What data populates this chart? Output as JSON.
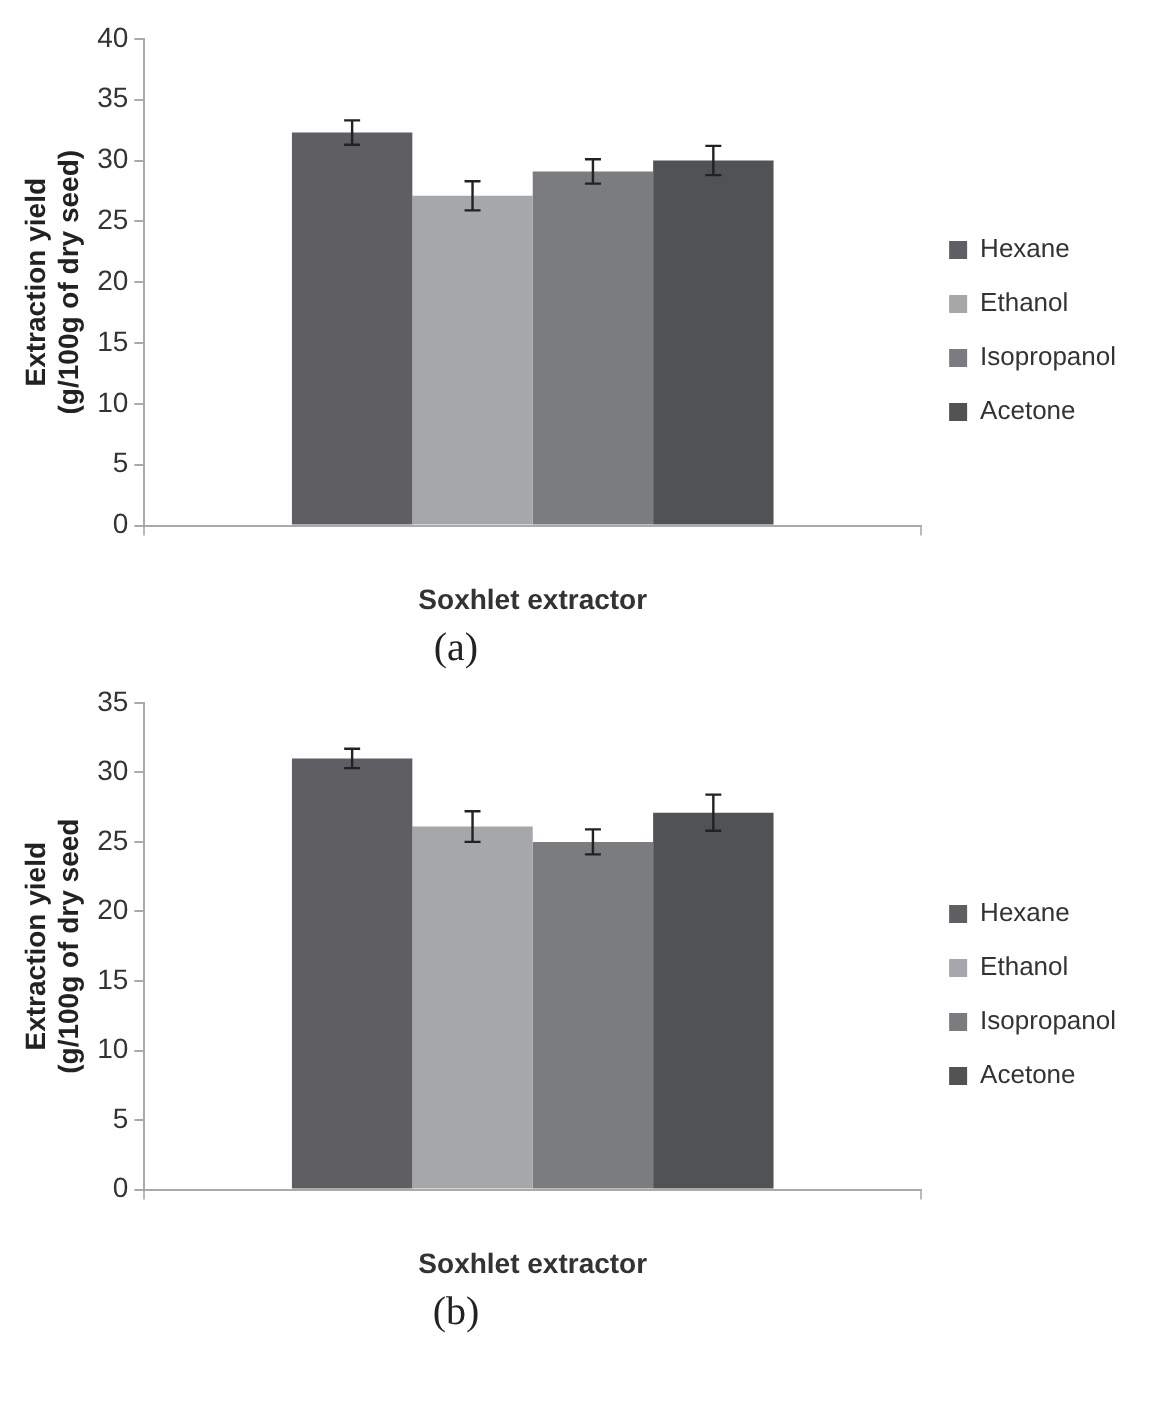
{
  "chart_data": [
    {
      "type": "bar",
      "categories": [
        null
      ],
      "xlabel": "Soxhlet extractor",
      "ylabel": "Extraction yield (g/100g of dry seed)",
      "ylim": [
        0,
        40
      ],
      "yticks": [
        0,
        5,
        10,
        15,
        20,
        25,
        30,
        35,
        40
      ],
      "grid": false,
      "legend": "right",
      "annotations": [
        "(a)"
      ],
      "series": [
        {
          "name": "Hexane",
          "color": "#5f5f63",
          "values": [
            32.3
          ],
          "errors": [
            1.0
          ]
        },
        {
          "name": "Ethanol",
          "color": "#a5a7aa",
          "values": [
            27.1
          ],
          "errors": [
            1.2
          ]
        },
        {
          "name": "Isopropanol",
          "color": "#7b7c80",
          "values": [
            29.1
          ],
          "errors": [
            1.0
          ]
        },
        {
          "name": "Acetone",
          "color": "#515254",
          "values": [
            30.0
          ],
          "errors": [
            1.2
          ]
        }
      ]
    },
    {
      "type": "bar",
      "categories": [
        null
      ],
      "xlabel": "Soxhlet extractor",
      "ylabel": "Extraction yield (g/100g of dry seed",
      "ylim": [
        0,
        35
      ],
      "yticks": [
        0,
        5,
        10,
        15,
        20,
        25,
        30,
        35
      ],
      "grid": false,
      "legend": "right",
      "annotations": [
        "(b)"
      ],
      "series": [
        {
          "name": "Hexane",
          "color": "#5f5f63",
          "values": [
            31.0
          ],
          "errors": [
            0.7
          ]
        },
        {
          "name": "Ethanol",
          "color": "#a5a7aa",
          "values": [
            26.1
          ],
          "errors": [
            1.1
          ]
        },
        {
          "name": "Isopropanol",
          "color": "#7b7c80",
          "values": [
            25.0
          ],
          "errors": [
            0.9
          ]
        },
        {
          "name": "Acetone",
          "color": "#515254",
          "values": [
            27.1
          ],
          "errors": [
            1.3
          ]
        }
      ]
    }
  ]
}
